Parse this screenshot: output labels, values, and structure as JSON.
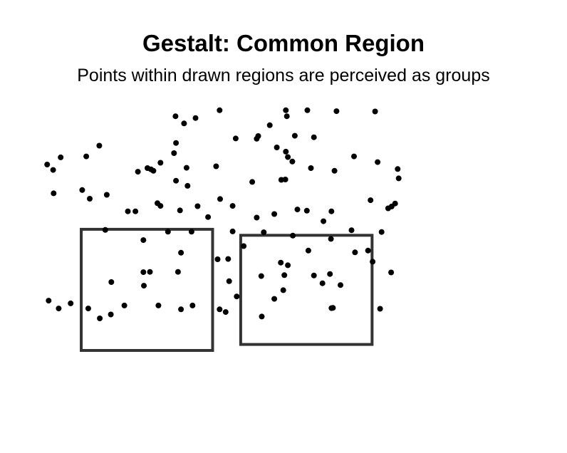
{
  "chart_data": {
    "type": "scatter",
    "title": "Gestalt: Common Region",
    "subtitle": "Points within drawn regions are perceived as groups",
    "xlim": [
      0,
      1
    ],
    "ylim": [
      0,
      1
    ],
    "grid": false,
    "axes_visible": false,
    "point_color": "#000000",
    "region_color": "#333333",
    "regions": [
      {
        "xmin": 0.108,
        "xmax": 0.37,
        "ymin": 0.19,
        "ymax": 0.594
      },
      {
        "xmin": 0.426,
        "xmax": 0.688,
        "ymin": 0.21,
        "ymax": 0.574
      }
    ],
    "points": [
      [
        0.296,
        0.971
      ],
      [
        0.313,
        0.947
      ],
      [
        0.336,
        0.965
      ],
      [
        0.384,
        0.991
      ],
      [
        0.516,
        0.991
      ],
      [
        0.559,
        0.991
      ],
      [
        0.617,
        0.988
      ],
      [
        0.694,
        0.987
      ],
      [
        0.518,
        0.971
      ],
      [
        0.484,
        0.941
      ],
      [
        0.461,
        0.905
      ],
      [
        0.458,
        0.896
      ],
      [
        0.416,
        0.897
      ],
      [
        0.534,
        0.906
      ],
      [
        0.572,
        0.901
      ],
      [
        0.297,
        0.882
      ],
      [
        0.144,
        0.873
      ],
      [
        0.498,
        0.867
      ],
      [
        0.516,
        0.853
      ],
      [
        0.293,
        0.848
      ],
      [
        0.118,
        0.837
      ],
      [
        0.067,
        0.834
      ],
      [
        0.52,
        0.835
      ],
      [
        0.529,
        0.82
      ],
      [
        0.652,
        0.837
      ],
      [
        0.699,
        0.818
      ],
      [
        0.04,
        0.81
      ],
      [
        0.266,
        0.816
      ],
      [
        0.052,
        0.792
      ],
      [
        0.24,
        0.798
      ],
      [
        0.247,
        0.794
      ],
      [
        0.252,
        0.789
      ],
      [
        0.221,
        0.786
      ],
      [
        0.318,
        0.799
      ],
      [
        0.377,
        0.804
      ],
      [
        0.739,
        0.795
      ],
      [
        0.566,
        0.798
      ],
      [
        0.613,
        0.789
      ],
      [
        0.741,
        0.764
      ],
      [
        0.297,
        0.756
      ],
      [
        0.32,
        0.739
      ],
      [
        0.507,
        0.759
      ],
      [
        0.515,
        0.76
      ],
      [
        0.449,
        0.752
      ],
      [
        0.11,
        0.725
      ],
      [
        0.159,
        0.709
      ],
      [
        0.053,
        0.714
      ],
      [
        0.125,
        0.696
      ],
      [
        0.26,
        0.681
      ],
      [
        0.266,
        0.672
      ],
      [
        0.34,
        0.671
      ],
      [
        0.385,
        0.695
      ],
      [
        0.41,
        0.672
      ],
      [
        0.685,
        0.691
      ],
      [
        0.734,
        0.68
      ],
      [
        0.727,
        0.67
      ],
      [
        0.72,
        0.664
      ],
      [
        0.539,
        0.66
      ],
      [
        0.558,
        0.656
      ],
      [
        0.607,
        0.654
      ],
      [
        0.201,
        0.654
      ],
      [
        0.216,
        0.654
      ],
      [
        0.305,
        0.657
      ],
      [
        0.493,
        0.645
      ],
      [
        0.458,
        0.633
      ],
      [
        0.361,
        0.635
      ],
      [
        0.591,
        0.621
      ],
      [
        0.156,
        0.592
      ],
      [
        0.281,
        0.586
      ],
      [
        0.328,
        0.586
      ],
      [
        0.41,
        0.587
      ],
      [
        0.472,
        0.584
      ],
      [
        0.53,
        0.573
      ],
      [
        0.647,
        0.591
      ],
      [
        0.707,
        0.585
      ],
      [
        0.232,
        0.558
      ],
      [
        0.606,
        0.562
      ],
      [
        0.432,
        0.538
      ],
      [
        0.561,
        0.523
      ],
      [
        0.307,
        0.516
      ],
      [
        0.654,
        0.517
      ],
      [
        0.68,
        0.523
      ],
      [
        0.38,
        0.494
      ],
      [
        0.401,
        0.495
      ],
      [
        0.506,
        0.483
      ],
      [
        0.52,
        0.474
      ],
      [
        0.689,
        0.486
      ],
      [
        0.232,
        0.451
      ],
      [
        0.245,
        0.452
      ],
      [
        0.301,
        0.452
      ],
      [
        0.726,
        0.45
      ],
      [
        0.467,
        0.438
      ],
      [
        0.513,
        0.441
      ],
      [
        0.572,
        0.44
      ],
      [
        0.604,
        0.445
      ],
      [
        0.403,
        0.421
      ],
      [
        0.168,
        0.418
      ],
      [
        0.589,
        0.414
      ],
      [
        0.625,
        0.408
      ],
      [
        0.233,
        0.406
      ],
      [
        0.511,
        0.391
      ],
      [
        0.418,
        0.37
      ],
      [
        0.493,
        0.362
      ],
      [
        0.043,
        0.356
      ],
      [
        0.087,
        0.347
      ],
      [
        0.063,
        0.33
      ],
      [
        0.122,
        0.33
      ],
      [
        0.194,
        0.34
      ],
      [
        0.262,
        0.34
      ],
      [
        0.33,
        0.34
      ],
      [
        0.607,
        0.331
      ],
      [
        0.61,
        0.332
      ],
      [
        0.704,
        0.329
      ],
      [
        0.384,
        0.327
      ],
      [
        0.396,
        0.318
      ],
      [
        0.307,
        0.327
      ],
      [
        0.167,
        0.31
      ],
      [
        0.145,
        0.297
      ],
      [
        0.468,
        0.303
      ]
    ]
  }
}
